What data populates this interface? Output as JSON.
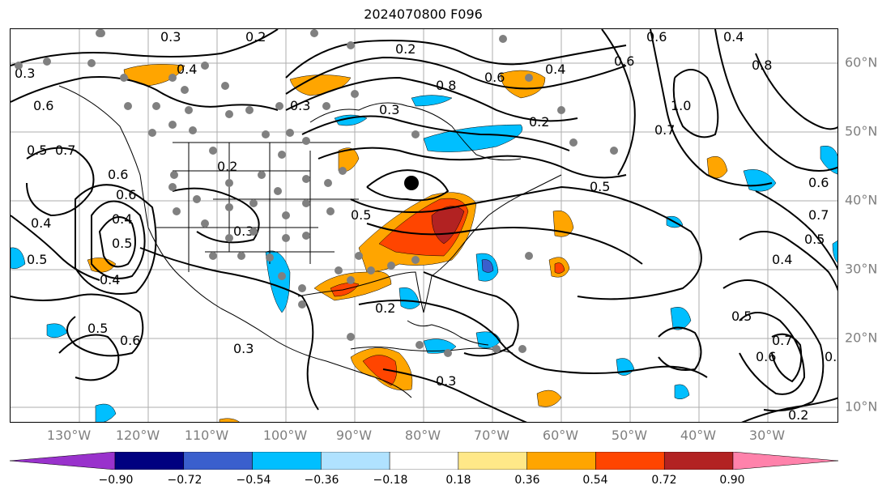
{
  "title": "2024070800 F096",
  "lon_labels": [
    "130°W",
    "120°W",
    "110°W",
    "100°W",
    "90°W",
    "80°W",
    "70°W",
    "60°W",
    "50°W",
    "40°W",
    "30°W"
  ],
  "lat_labels": [
    "60°N",
    "50°N",
    "40°N",
    "30°N",
    "20°N",
    "10°N"
  ],
  "colorbar": {
    "ticks": [
      "−0.90",
      "−0.72",
      "−0.54",
      "−0.36",
      "−0.18",
      "0.18",
      "0.36",
      "0.54",
      "0.72",
      "0.90"
    ],
    "colors": [
      "#9932cc",
      "#000080",
      "#3a5fcd",
      "#00bfff",
      "#b0e2ff",
      "#ffffff",
      "#ffe888",
      "#ffa500",
      "#ff4500",
      "#b22222",
      "#ff82ab"
    ]
  },
  "contour_labels": [
    "0.3",
    "0.2",
    "0.3",
    "0.4",
    "0.6",
    "0.5",
    "0.7",
    "0.6",
    "0.4",
    "0.5",
    "0.4",
    "0.5",
    "0.6",
    "0.2",
    "0.3",
    "0.2",
    "0.3",
    "0.8",
    "0.6",
    "0.4",
    "0.3",
    "0.2",
    "0.6",
    "0.4",
    "0.8",
    "0.6",
    "1.0",
    "0.7",
    "0.5",
    "0.6",
    "0.7",
    "0.5",
    "0.4",
    "0.5",
    "0.6",
    "0.7",
    "0.3",
    "0.5",
    "0.3",
    "0.2",
    "0.3",
    "0.2",
    "0.6",
    "0.4",
    "0.5"
  ]
}
